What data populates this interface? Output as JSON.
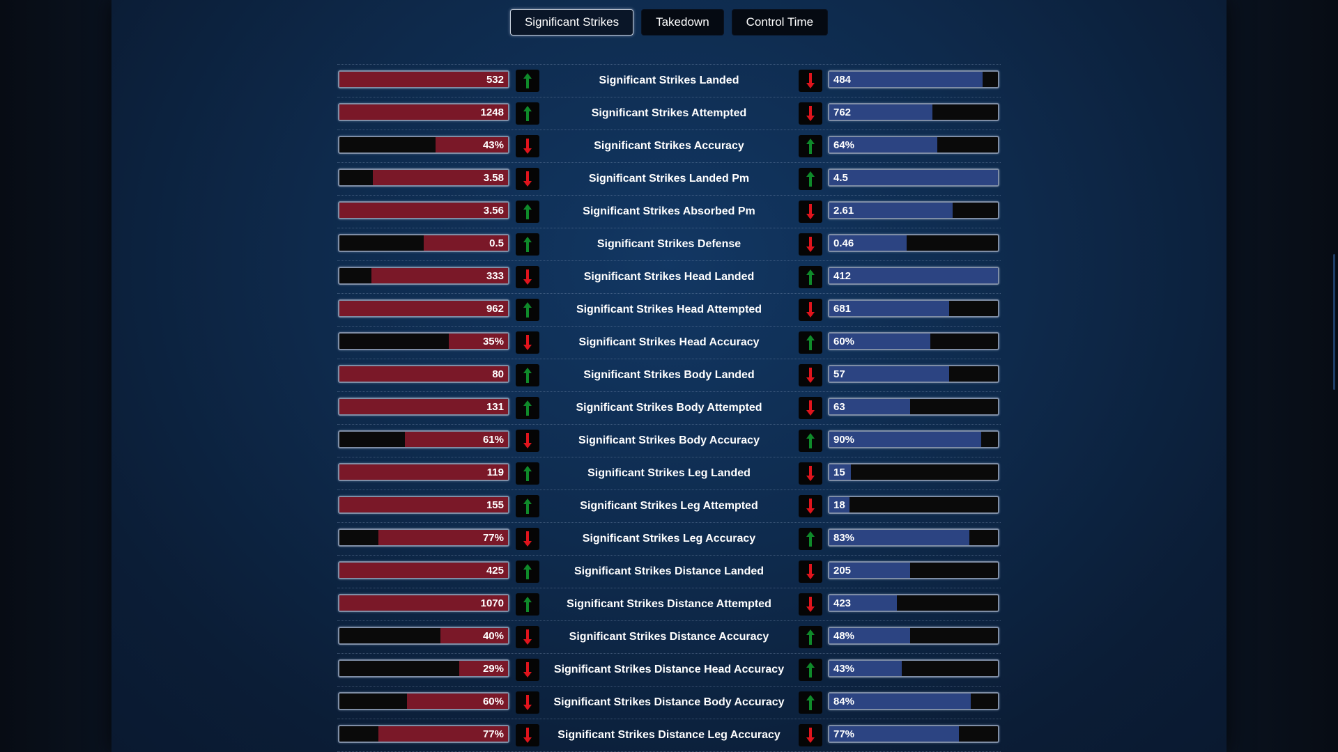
{
  "tabs": [
    {
      "label": "Significant Strikes",
      "active": true
    },
    {
      "label": "Takedown",
      "active": false
    },
    {
      "label": "Control Time",
      "active": false
    }
  ],
  "colors": {
    "left_fill": "#7a1828",
    "right_fill": "#2c4482",
    "up_arrow": "#0f8a2a",
    "down_arrow": "#e0141c"
  },
  "rows": [
    {
      "label": "Significant Strikes Landed",
      "left": "532",
      "left_fill": 1.0,
      "left_dir": "up",
      "right": "484",
      "right_fill": 0.91,
      "right_dir": "down"
    },
    {
      "label": "Significant Strikes Attempted",
      "left": "1248",
      "left_fill": 1.0,
      "left_dir": "up",
      "right": "762",
      "right_fill": 0.61,
      "right_dir": "down"
    },
    {
      "label": "Significant Strikes Accuracy",
      "left": "43%",
      "left_fill": 0.43,
      "left_dir": "down",
      "right": "64%",
      "right_fill": 0.64,
      "right_dir": "up"
    },
    {
      "label": "Significant Strikes Landed Pm",
      "left": "3.58",
      "left_fill": 0.8,
      "left_dir": "down",
      "right": "4.5",
      "right_fill": 1.0,
      "right_dir": "up"
    },
    {
      "label": "Significant Strikes Absorbed Pm",
      "left": "3.56",
      "left_fill": 1.0,
      "left_dir": "up",
      "right": "2.61",
      "right_fill": 0.73,
      "right_dir": "down"
    },
    {
      "label": "Significant Strikes Defense",
      "left": "0.5",
      "left_fill": 0.5,
      "left_dir": "up",
      "right": "0.46",
      "right_fill": 0.46,
      "right_dir": "down"
    },
    {
      "label": "Significant Strikes Head Landed",
      "left": "333",
      "left_fill": 0.81,
      "left_dir": "down",
      "right": "412",
      "right_fill": 1.0,
      "right_dir": "up"
    },
    {
      "label": "Significant Strikes Head Attempted",
      "left": "962",
      "left_fill": 1.0,
      "left_dir": "up",
      "right": "681",
      "right_fill": 0.71,
      "right_dir": "down"
    },
    {
      "label": "Significant Strikes Head Accuracy",
      "left": "35%",
      "left_fill": 0.35,
      "left_dir": "down",
      "right": "60%",
      "right_fill": 0.6,
      "right_dir": "up"
    },
    {
      "label": "Significant Strikes Body Landed",
      "left": "80",
      "left_fill": 1.0,
      "left_dir": "up",
      "right": "57",
      "right_fill": 0.71,
      "right_dir": "down"
    },
    {
      "label": "Significant Strikes Body Attempted",
      "left": "131",
      "left_fill": 1.0,
      "left_dir": "up",
      "right": "63",
      "right_fill": 0.48,
      "right_dir": "down"
    },
    {
      "label": "Significant Strikes Body Accuracy",
      "left": "61%",
      "left_fill": 0.61,
      "left_dir": "down",
      "right": "90%",
      "right_fill": 0.9,
      "right_dir": "up"
    },
    {
      "label": "Significant Strikes Leg Landed",
      "left": "119",
      "left_fill": 1.0,
      "left_dir": "up",
      "right": "15",
      "right_fill": 0.13,
      "right_dir": "down"
    },
    {
      "label": "Significant Strikes Leg Attempted",
      "left": "155",
      "left_fill": 1.0,
      "left_dir": "up",
      "right": "18",
      "right_fill": 0.12,
      "right_dir": "down"
    },
    {
      "label": "Significant Strikes Leg Accuracy",
      "left": "77%",
      "left_fill": 0.77,
      "left_dir": "down",
      "right": "83%",
      "right_fill": 0.83,
      "right_dir": "up"
    },
    {
      "label": "Significant Strikes Distance Landed",
      "left": "425",
      "left_fill": 1.0,
      "left_dir": "up",
      "right": "205",
      "right_fill": 0.48,
      "right_dir": "down"
    },
    {
      "label": "Significant Strikes Distance Attempted",
      "left": "1070",
      "left_fill": 1.0,
      "left_dir": "up",
      "right": "423",
      "right_fill": 0.4,
      "right_dir": "down"
    },
    {
      "label": "Significant Strikes Distance Accuracy",
      "left": "40%",
      "left_fill": 0.4,
      "left_dir": "down",
      "right": "48%",
      "right_fill": 0.48,
      "right_dir": "up"
    },
    {
      "label": "Significant Strikes Distance Head Accuracy",
      "left": "29%",
      "left_fill": 0.29,
      "left_dir": "down",
      "right": "43%",
      "right_fill": 0.43,
      "right_dir": "up"
    },
    {
      "label": "Significant Strikes Distance Body Accuracy",
      "left": "60%",
      "left_fill": 0.6,
      "left_dir": "down",
      "right": "84%",
      "right_fill": 0.84,
      "right_dir": "up"
    },
    {
      "label": "Significant Strikes Distance Leg Accuracy",
      "left": "77%",
      "left_fill": 0.77,
      "left_dir": "down",
      "right": "77%",
      "right_fill": 0.77,
      "right_dir": "down"
    }
  ]
}
